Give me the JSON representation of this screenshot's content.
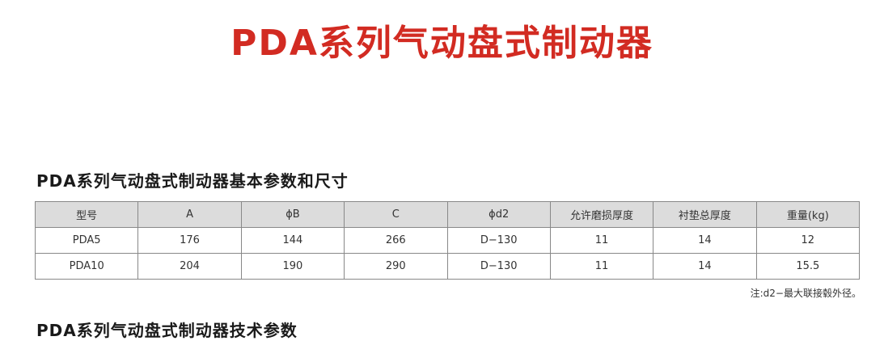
{
  "title": "PDA系列气动盘式制动器",
  "section1": "PDA系列气动盘式制动器基本参数和尺寸",
  "table": {
    "headers": [
      "型号",
      "A",
      "ϕB",
      "C",
      "ϕd2",
      "允许磨损厚度",
      "衬垫总厚度",
      "重量(kg)"
    ],
    "rows": [
      [
        "PDA5",
        "176",
        "144",
        "266",
        "D−130",
        "11",
        "14",
        "12"
      ],
      [
        "PDA10",
        "204",
        "190",
        "290",
        "D−130",
        "11",
        "14",
        "15.5"
      ]
    ]
  },
  "note": "注:d2−最大联接毂外径。",
  "section2": "PDA系列气动盘式制动器技术参数",
  "colors": {
    "title": "#d22b22",
    "header_bg": "#dcdcdc"
  }
}
